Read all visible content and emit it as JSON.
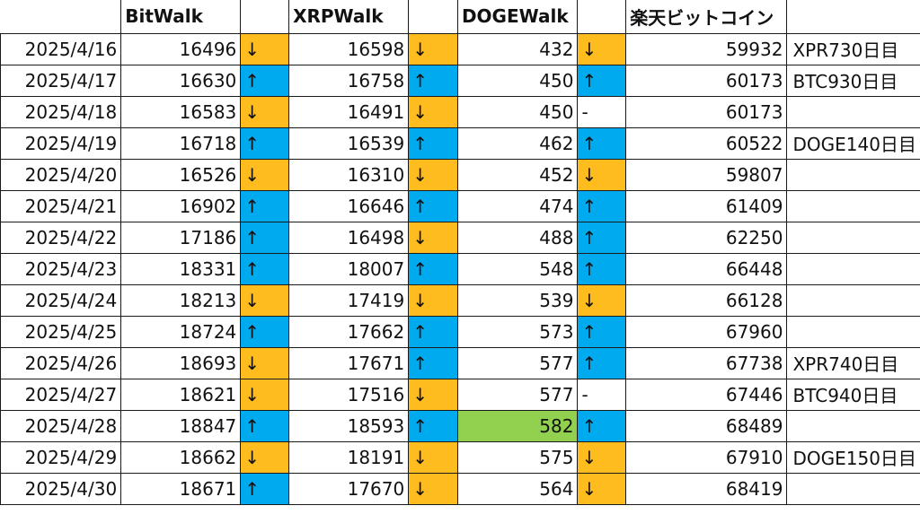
{
  "headers": {
    "date": "",
    "bitwalk": "BitWalk",
    "xrpwalk": "XRPWalk",
    "dogewalk": "DOGEWalk",
    "rakuten": "楽天ビットコイン",
    "note": ""
  },
  "colors": {
    "up": "#00aaee",
    "down": "#ffbc1e",
    "highlight": "#92d050"
  },
  "rows": [
    {
      "date": "2025/4/16",
      "bit": "16496",
      "bit_dir": "↓",
      "xrp": "16598",
      "xrp_dir": "↓",
      "doge": "432",
      "doge_dir": "↓",
      "rakuten": "59932",
      "note": "XPR730日目"
    },
    {
      "date": "2025/4/17",
      "bit": "16630",
      "bit_dir": "↑",
      "xrp": "16758",
      "xrp_dir": "↑",
      "doge": "450",
      "doge_dir": "↑",
      "rakuten": "60173",
      "note": "BTC930日目"
    },
    {
      "date": "2025/4/18",
      "bit": "16583",
      "bit_dir": "↓",
      "xrp": "16491",
      "xrp_dir": "↓",
      "doge": "450",
      "doge_dir": "-",
      "rakuten": "60173",
      "note": ""
    },
    {
      "date": "2025/4/19",
      "bit": "16718",
      "bit_dir": "↑",
      "xrp": "16539",
      "xrp_dir": "↑",
      "doge": "462",
      "doge_dir": "↑",
      "rakuten": "60522",
      "note": "DOGE140日目"
    },
    {
      "date": "2025/4/20",
      "bit": "16526",
      "bit_dir": "↓",
      "xrp": "16310",
      "xrp_dir": "↓",
      "doge": "452",
      "doge_dir": "↓",
      "rakuten": "59807",
      "note": ""
    },
    {
      "date": "2025/4/21",
      "bit": "16902",
      "bit_dir": "↑",
      "xrp": "16646",
      "xrp_dir": "↑",
      "doge": "474",
      "doge_dir": "↑",
      "rakuten": "61409",
      "note": ""
    },
    {
      "date": "2025/4/22",
      "bit": "17186",
      "bit_dir": "↑",
      "xrp": "16498",
      "xrp_dir": "↓",
      "doge": "488",
      "doge_dir": "↑",
      "rakuten": "62250",
      "note": ""
    },
    {
      "date": "2025/4/23",
      "bit": "18331",
      "bit_dir": "↑",
      "xrp": "18007",
      "xrp_dir": "↑",
      "doge": "548",
      "doge_dir": "↑",
      "rakuten": "66448",
      "note": ""
    },
    {
      "date": "2025/4/24",
      "bit": "18213",
      "bit_dir": "↓",
      "xrp": "17419",
      "xrp_dir": "↓",
      "doge": "539",
      "doge_dir": "↓",
      "rakuten": "66128",
      "note": ""
    },
    {
      "date": "2025/4/25",
      "bit": "18724",
      "bit_dir": "↑",
      "xrp": "17662",
      "xrp_dir": "↑",
      "doge": "573",
      "doge_dir": "↑",
      "rakuten": "67960",
      "note": ""
    },
    {
      "date": "2025/4/26",
      "bit": "18693",
      "bit_dir": "↓",
      "xrp": "17671",
      "xrp_dir": "↑",
      "doge": "577",
      "doge_dir": "↑",
      "rakuten": "67738",
      "note": "XPR740日目"
    },
    {
      "date": "2025/4/27",
      "bit": "18621",
      "bit_dir": "↓",
      "xrp": "17516",
      "xrp_dir": "↓",
      "doge": "577",
      "doge_dir": "-",
      "rakuten": "67446",
      "note": "BTC940日目"
    },
    {
      "date": "2025/4/28",
      "bit": "18847",
      "bit_dir": "↑",
      "xrp": "18593",
      "xrp_dir": "↑",
      "doge": "582",
      "doge_dir": "↑",
      "rakuten": "68489",
      "note": "",
      "doge_highlight": true
    },
    {
      "date": "2025/4/29",
      "bit": "18662",
      "bit_dir": "↓",
      "xrp": "18191",
      "xrp_dir": "↓",
      "doge": "575",
      "doge_dir": "↓",
      "rakuten": "67910",
      "note": "DOGE150日目"
    },
    {
      "date": "2025/4/30",
      "bit": "18671",
      "bit_dir": "↑",
      "xrp": "17670",
      "xrp_dir": "↓",
      "doge": "564",
      "doge_dir": "↓",
      "rakuten": "68419",
      "note": ""
    }
  ]
}
